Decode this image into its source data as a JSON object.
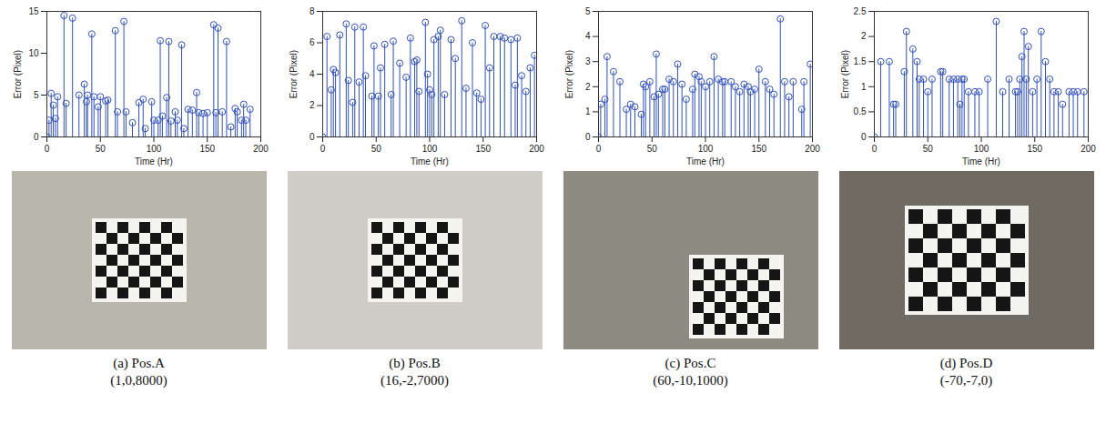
{
  "chart_data": [
    {
      "type": "stem",
      "marker": "o",
      "color": "#3050c0",
      "x_label": "Time (Hr)",
      "y_label": "Error (Pixel)",
      "xlim": [
        0,
        200
      ],
      "xticks": [
        0,
        50,
        100,
        150,
        200
      ],
      "ylim": [
        0,
        15
      ],
      "yticks": [
        0,
        5,
        10,
        15
      ],
      "x": [
        0,
        2,
        4,
        6,
        8,
        10,
        16,
        18,
        24,
        30,
        35,
        37,
        38,
        42,
        44,
        48,
        50,
        55,
        57,
        64,
        66,
        72,
        74,
        80,
        86,
        90,
        92,
        98,
        100,
        104,
        106,
        108,
        112,
        114,
        116,
        120,
        122,
        126,
        128,
        132,
        136,
        140,
        142,
        146,
        150,
        156,
        158,
        160,
        164,
        168,
        172,
        176,
        178,
        182,
        184,
        186,
        190
      ],
      "values": [
        0,
        2,
        5.2,
        3.8,
        2.2,
        4.8,
        14.5,
        4,
        14.2,
        5,
        6.3,
        4.2,
        5,
        12.3,
        4.8,
        3.6,
        4.8,
        4.3,
        4.4,
        12.7,
        3,
        13.8,
        3,
        1.7,
        4.1,
        4.5,
        1,
        4.2,
        2,
        2,
        11.5,
        2.5,
        4.7,
        11.4,
        1.9,
        3,
        2,
        11,
        1,
        3.3,
        3.2,
        5.3,
        2.9,
        2.8,
        2.9,
        13.4,
        2.9,
        13,
        3,
        11.4,
        1.2,
        3.4,
        3,
        2,
        3.9,
        2,
        3.3
      ],
      "caption": [
        "(a) Pos.A",
        "(1,0,8000)"
      ]
    },
    {
      "type": "stem",
      "marker": "o",
      "color": "#3050c0",
      "x_label": "Time (Hr)",
      "y_label": "Error (Pixel)",
      "xlim": [
        0,
        200
      ],
      "xticks": [
        0,
        50,
        100,
        150,
        200
      ],
      "ylim": [
        0,
        8
      ],
      "yticks": [
        0,
        2,
        4,
        6,
        8
      ],
      "x": [
        0,
        4,
        8,
        10,
        12,
        16,
        22,
        24,
        28,
        30,
        34,
        38,
        40,
        46,
        48,
        52,
        54,
        58,
        64,
        66,
        72,
        78,
        82,
        86,
        88,
        90,
        96,
        98,
        100,
        102,
        104,
        108,
        110,
        114,
        120,
        124,
        130,
        134,
        140,
        144,
        148,
        152,
        156,
        160,
        166,
        170,
        176,
        180,
        182,
        186,
        190,
        194,
        198
      ],
      "values": [
        0,
        6.4,
        3,
        4.3,
        4.1,
        6.5,
        7.2,
        3.6,
        2.2,
        7,
        3.5,
        7,
        3.9,
        2.6,
        5.8,
        2.6,
        4.4,
        5.9,
        2.7,
        6.1,
        4.7,
        3.8,
        6.3,
        4.8,
        4.9,
        2.9,
        7.3,
        4,
        3,
        2.7,
        6.2,
        6.4,
        6.8,
        2.7,
        6.2,
        5,
        7.4,
        3.1,
        6,
        2.8,
        2.4,
        7.1,
        4.4,
        6.4,
        6.4,
        6.3,
        6.2,
        3.3,
        6.3,
        3.9,
        2.9,
        4.4,
        5.2
      ],
      "caption": [
        "(b) Pos.B",
        "(16,-2,7000)"
      ]
    },
    {
      "type": "stem",
      "marker": "o",
      "color": "#3050c0",
      "x_label": "Time (Hr)",
      "y_label": "Error (Pixel)",
      "xlim": [
        0,
        200
      ],
      "xticks": [
        0,
        50,
        100,
        150,
        200
      ],
      "ylim": [
        0,
        5
      ],
      "yticks": [
        0,
        1,
        2,
        3,
        4,
        5
      ],
      "x": [
        0,
        2,
        6,
        8,
        14,
        20,
        26,
        30,
        34,
        40,
        42,
        44,
        48,
        52,
        54,
        56,
        60,
        62,
        66,
        70,
        74,
        78,
        82,
        88,
        90,
        94,
        96,
        100,
        104,
        108,
        112,
        116,
        118,
        124,
        128,
        132,
        136,
        140,
        142,
        146,
        150,
        156,
        160,
        164,
        170,
        174,
        178,
        182,
        190,
        192,
        198
      ],
      "values": [
        0,
        1.3,
        1.5,
        3.2,
        2.6,
        2.2,
        1.1,
        1.3,
        1.2,
        0.9,
        2.1,
        2,
        2.2,
        1.6,
        3.3,
        1.7,
        1.9,
        1.9,
        2.3,
        2.2,
        2.9,
        2.1,
        1.5,
        1.9,
        2.5,
        2.4,
        2.2,
        2,
        2.2,
        3.2,
        2.3,
        2.2,
        2.2,
        2.2,
        2,
        1.8,
        2.1,
        2,
        1.8,
        1.9,
        2.7,
        2.2,
        1.9,
        1.7,
        4.7,
        2.2,
        1.6,
        2.2,
        1.1,
        2.2,
        2.9
      ],
      "caption": [
        "(c) Pos.C",
        "(60,-10,1000)"
      ]
    },
    {
      "type": "stem",
      "marker": "o",
      "color": "#3050c0",
      "x_label": "Time (Hr)",
      "y_label": "Error (Pixel)",
      "xlim": [
        0,
        200
      ],
      "xticks": [
        0,
        50,
        100,
        150,
        200
      ],
      "ylim": [
        0,
        2.5
      ],
      "yticks": [
        0,
        0.5,
        1,
        1.5,
        2,
        2.5
      ],
      "x": [
        0,
        6,
        14,
        18,
        20,
        28,
        30,
        36,
        40,
        42,
        46,
        50,
        54,
        62,
        64,
        70,
        74,
        78,
        80,
        82,
        84,
        88,
        94,
        98,
        106,
        114,
        120,
        126,
        132,
        134,
        136,
        138,
        140,
        142,
        144,
        148,
        152,
        156,
        160,
        164,
        168,
        172,
        176,
        182,
        186,
        190,
        196
      ],
      "values": [
        0,
        1.5,
        1.5,
        0.65,
        0.65,
        1.3,
        2.1,
        1.75,
        1.5,
        1.15,
        1.15,
        0.9,
        1.15,
        1.3,
        1.3,
        1.15,
        1.15,
        1.15,
        0.65,
        1.15,
        1.15,
        0.9,
        0.9,
        0.9,
        1.15,
        2.3,
        0.9,
        1.15,
        0.9,
        0.9,
        1.15,
        1.6,
        2.1,
        1.15,
        1.8,
        0.9,
        1.15,
        2.1,
        1.5,
        1.15,
        0.9,
        0.9,
        0.65,
        0.9,
        0.9,
        0.9,
        0.9
      ],
      "caption": [
        "(d) Pos.D",
        "(-70,-7,0)"
      ]
    }
  ]
}
